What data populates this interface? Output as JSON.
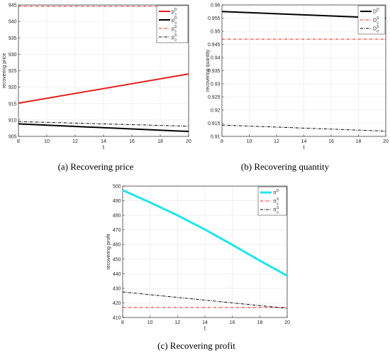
{
  "chart_data": [
    {
      "type": "line",
      "caption": "(a) Recovering price",
      "xlabel": "t",
      "ylabel": "recovering price",
      "xlim": [
        8,
        20
      ],
      "ylim": [
        905,
        945
      ],
      "xticks": [
        8,
        10,
        12,
        14,
        16,
        18,
        20
      ],
      "yticks": [
        905,
        910,
        915,
        920,
        925,
        930,
        935,
        940,
        945
      ],
      "legend_position": "top-right",
      "series": [
        {
          "legend": {
            "base": "p",
            "sup": "D",
            "sub": "s"
          },
          "color": "#e0201c",
          "dash": "solid",
          "width": 2,
          "x": [
            8,
            20
          ],
          "y": [
            915.1,
            924.0
          ]
        },
        {
          "legend": {
            "base": "p",
            "sup": "D",
            "sub": "o"
          },
          "color": "#000000",
          "dash": "solid",
          "width": 2,
          "x": [
            8,
            20
          ],
          "y": [
            908.8,
            906.5
          ]
        },
        {
          "legend": {
            "base": "p",
            "sup": "S",
            "sub": "s"
          },
          "color": "#e0201c",
          "dash": "dashdot",
          "width": 1,
          "x": [
            8,
            20
          ],
          "y": [
            944.6,
            944.6
          ]
        },
        {
          "legend": {
            "base": "p",
            "sup": "S",
            "sub": "o"
          },
          "color": "#000000",
          "dash": "dashdot",
          "width": 1,
          "x": [
            8,
            20
          ],
          "y": [
            909.5,
            908.1
          ]
        }
      ]
    },
    {
      "type": "line",
      "caption": "(b) Recovering quantity",
      "xlabel": "t",
      "ylabel": "recovering quantity",
      "xlim": [
        8,
        20
      ],
      "ylim": [
        0.91,
        0.96
      ],
      "xticks": [
        8,
        10,
        12,
        14,
        16,
        18,
        20
      ],
      "yticks": [
        0.91,
        0.915,
        0.92,
        0.925,
        0.93,
        0.935,
        0.94,
        0.945,
        0.95,
        0.955,
        0.96
      ],
      "legend_position": "top-right",
      "series": [
        {
          "legend": {
            "base": "D",
            "sup": "D",
            "sub": ""
          },
          "color": "#000000",
          "dash": "solid",
          "width": 2,
          "x": [
            8,
            20
          ],
          "y": [
            0.9575,
            0.955
          ]
        },
        {
          "legend": {
            "base": "D",
            "sup": "S",
            "sub": "s"
          },
          "color": "#e0201c",
          "dash": "dashdot",
          "width": 1,
          "x": [
            8,
            20
          ],
          "y": [
            0.947,
            0.947
          ]
        },
        {
          "legend": {
            "base": "D",
            "sup": "S",
            "sub": "o"
          },
          "color": "#000000",
          "dash": "dashdot",
          "width": 1,
          "x": [
            8,
            20
          ],
          "y": [
            0.9143,
            0.912
          ]
        }
      ]
    },
    {
      "type": "line",
      "caption": "(c) Recovering profit",
      "xlabel": "t",
      "ylabel": "recovering profit",
      "xlim": [
        8,
        20
      ],
      "ylim": [
        410,
        500
      ],
      "xticks": [
        8,
        10,
        12,
        14,
        16,
        18,
        20
      ],
      "yticks": [
        410,
        420,
        430,
        440,
        450,
        460,
        470,
        480,
        490,
        500
      ],
      "legend_position": "top-right",
      "series": [
        {
          "legend": {
            "base": "π",
            "sup": "D",
            "sub": ""
          },
          "color": "#22e5e8",
          "dash": "solid",
          "width": 3,
          "x": [
            8,
            10,
            12,
            14,
            16,
            18,
            20
          ],
          "y": [
            497.2,
            488.8,
            480.0,
            470.3,
            459.8,
            449.0,
            438.6
          ]
        },
        {
          "legend": {
            "base": "π",
            "sup": "S",
            "sub": "s"
          },
          "color": "#e0201c",
          "dash": "dashdot",
          "width": 1,
          "x": [
            8,
            20
          ],
          "y": [
            416.9,
            416.9
          ]
        },
        {
          "legend": {
            "base": "π",
            "sup": "S",
            "sub": "o"
          },
          "color": "#000000",
          "dash": "dashdot",
          "width": 1,
          "x": [
            8,
            20
          ],
          "y": [
            427.5,
            416.3
          ]
        }
      ]
    }
  ]
}
